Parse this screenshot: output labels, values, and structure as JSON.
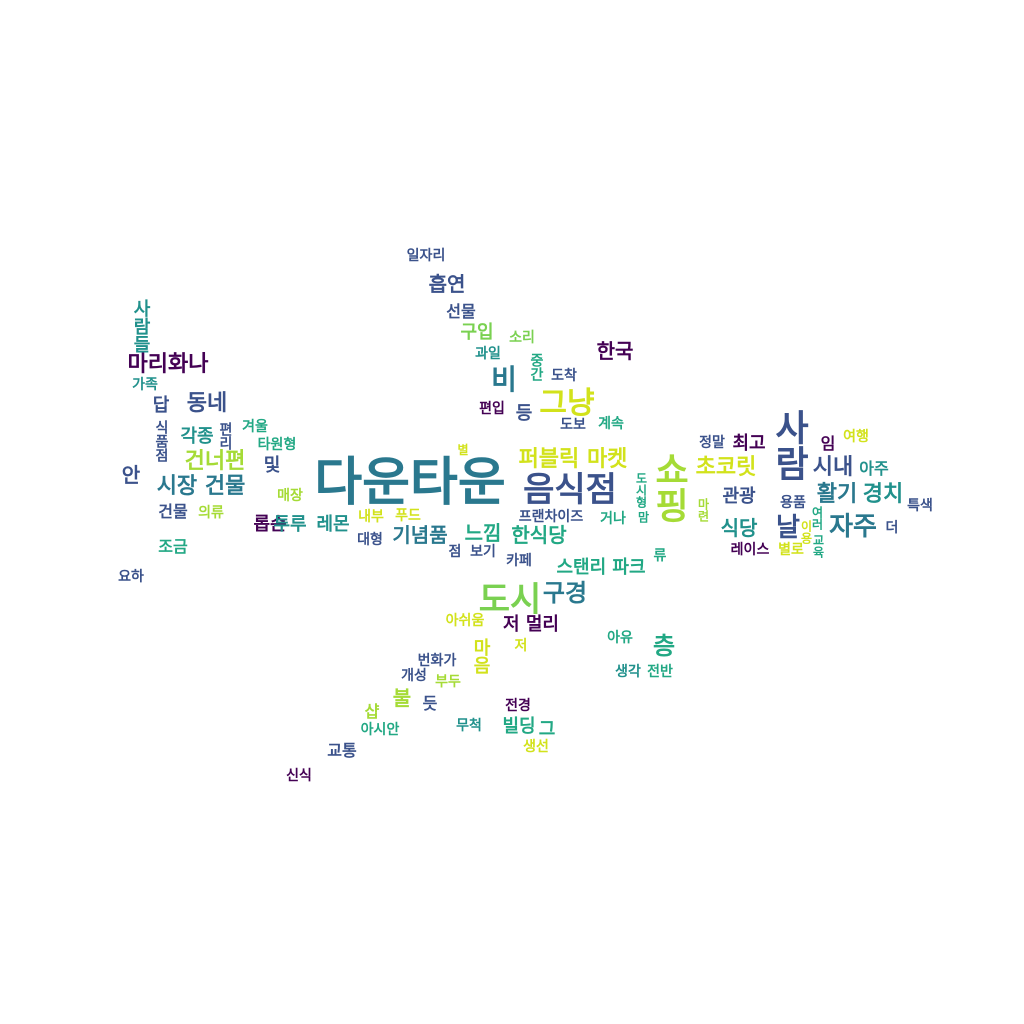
{
  "words": [
    {
      "text": "다운타운",
      "color": "#2a788e"
    },
    {
      "text": "음식점",
      "color": "#3b528b"
    },
    {
      "text": "쇼핑",
      "color": "#a5db36"
    },
    {
      "text": "사람",
      "color": "#3b528b"
    },
    {
      "text": "도시",
      "color": "#7ad151"
    },
    {
      "text": "그냥",
      "color": "#d2e21b"
    },
    {
      "text": "비",
      "color": "#2a788e"
    },
    {
      "text": "퍼블릭 마켓",
      "color": "#d2e21b"
    },
    {
      "text": "자주",
      "color": "#2a788e"
    },
    {
      "text": "날",
      "color": "#3b528b"
    },
    {
      "text": "구경",
      "color": "#2a788e"
    },
    {
      "text": "마리화나",
      "color": "#440154"
    },
    {
      "text": "건너편",
      "color": "#a5db36"
    },
    {
      "text": "시장 건물",
      "color": "#2a788e"
    },
    {
      "text": "동네",
      "color": "#3b528b"
    },
    {
      "text": "초코릿",
      "color": "#d2e21b"
    },
    {
      "text": "활기",
      "color": "#2a788e"
    },
    {
      "text": "경치",
      "color": "#21918c"
    },
    {
      "text": "시내",
      "color": "#3b528b"
    },
    {
      "text": "한국",
      "color": "#440154"
    },
    {
      "text": "흡연",
      "color": "#3b528b"
    },
    {
      "text": "기념품",
      "color": "#2a788e"
    },
    {
      "text": "느낌",
      "color": "#22a884"
    },
    {
      "text": "한식당",
      "color": "#22a884"
    },
    {
      "text": "스탠리 파크",
      "color": "#22a884"
    },
    {
      "text": "층",
      "color": "#22a884"
    },
    {
      "text": "식당",
      "color": "#21918c"
    },
    {
      "text": "관광",
      "color": "#3b528b"
    },
    {
      "text": "저 멀리",
      "color": "#440154"
    },
    {
      "text": "각종",
      "color": "#21918c"
    },
    {
      "text": "구입",
      "color": "#7ad151"
    },
    {
      "text": "최고",
      "color": "#440154"
    },
    {
      "text": "및",
      "color": "#3b528b"
    },
    {
      "text": "마음",
      "color": "#d2e21b"
    },
    {
      "text": "불",
      "color": "#a5db36"
    },
    {
      "text": "빌딩",
      "color": "#22a884"
    },
    {
      "text": "등",
      "color": "#3b528b"
    },
    {
      "text": "안",
      "color": "#3b528b"
    },
    {
      "text": "답",
      "color": "#3b528b"
    },
    {
      "text": "선물",
      "color": "#3b528b"
    },
    {
      "text": "사람들",
      "color": "#21918c"
    },
    {
      "text": "롭슨",
      "color": "#440154"
    },
    {
      "text": "레몬",
      "color": "#21918c"
    },
    {
      "text": "투루",
      "color": "#21918c"
    },
    {
      "text": "건물",
      "color": "#3b528b"
    },
    {
      "text": "조금",
      "color": "#22a884"
    },
    {
      "text": "일자리",
      "color": "#3b528b"
    },
    {
      "text": "카페",
      "color": "#3b528b"
    },
    {
      "text": "편입",
      "color": "#440154"
    },
    {
      "text": "아쉬움",
      "color": "#d2e21b"
    },
    {
      "text": "샵",
      "color": "#a5db36"
    },
    {
      "text": "듯",
      "color": "#3b528b"
    },
    {
      "text": "교통",
      "color": "#3b528b"
    },
    {
      "text": "아시안",
      "color": "#22a884"
    },
    {
      "text": "무척",
      "color": "#21918c"
    },
    {
      "text": "전경",
      "color": "#440154"
    },
    {
      "text": "생선",
      "color": "#d2e21b"
    },
    {
      "text": "개성",
      "color": "#3b528b"
    },
    {
      "text": "번화가",
      "color": "#3b528b"
    },
    {
      "text": "부두",
      "color": "#a5db36"
    },
    {
      "text": "생각",
      "color": "#21918c"
    },
    {
      "text": "전반",
      "color": "#22a884"
    },
    {
      "text": "아유",
      "color": "#22a884"
    },
    {
      "text": "프랜차이즈",
      "color": "#3b528b"
    },
    {
      "text": "거나",
      "color": "#22a884"
    },
    {
      "text": "대형",
      "color": "#3b528b"
    },
    {
      "text": "내부",
      "color": "#d2e21b"
    },
    {
      "text": "푸드",
      "color": "#d2e21b"
    },
    {
      "text": "가족",
      "color": "#21918c"
    },
    {
      "text": "의류",
      "color": "#a5db36"
    },
    {
      "text": "매장",
      "color": "#a5db36"
    },
    {
      "text": "겨울",
      "color": "#22a884"
    },
    {
      "text": "타원형",
      "color": "#22a884"
    },
    {
      "text": "과일",
      "color": "#21918c"
    },
    {
      "text": "소리",
      "color": "#7ad151"
    },
    {
      "text": "도착",
      "color": "#3b528b"
    },
    {
      "text": "도보",
      "color": "#3b528b"
    },
    {
      "text": "계속",
      "color": "#22a884"
    },
    {
      "text": "정말",
      "color": "#3b528b"
    },
    {
      "text": "임",
      "color": "#440154"
    },
    {
      "text": "여행",
      "color": "#d2e21b"
    },
    {
      "text": "아주",
      "color": "#21918c"
    },
    {
      "text": "용품",
      "color": "#3b528b"
    },
    {
      "text": "특색",
      "color": "#3b528b"
    },
    {
      "text": "더",
      "color": "#3b528b"
    },
    {
      "text": "레이스",
      "color": "#440154"
    },
    {
      "text": "별로",
      "color": "#d2e21b"
    },
    {
      "text": "점",
      "color": "#3b528b"
    },
    {
      "text": "보기",
      "color": "#3b528b"
    },
    {
      "text": "류",
      "color": "#22a884"
    },
    {
      "text": "저",
      "color": "#d2e21b"
    },
    {
      "text": "요하",
      "color": "#3b528b"
    },
    {
      "text": "신식",
      "color": "#440154"
    },
    {
      "text": "별",
      "color": "#d2e21b"
    },
    {
      "text": "그",
      "color": "#22a884"
    },
    {
      "text": "식품점",
      "color": "#3b528b"
    },
    {
      "text": "편리",
      "color": "#3b528b"
    },
    {
      "text": "중간",
      "color": "#22a884"
    },
    {
      "text": "도시형",
      "color": "#22a884"
    },
    {
      "text": "마련",
      "color": "#a5db36"
    },
    {
      "text": "맘",
      "color": "#22a884"
    },
    {
      "text": "여러",
      "color": "#22a884"
    },
    {
      "text": "이용",
      "color": "#d2e21b"
    },
    {
      "text": "교육",
      "color": "#22a884"
    }
  ]
}
